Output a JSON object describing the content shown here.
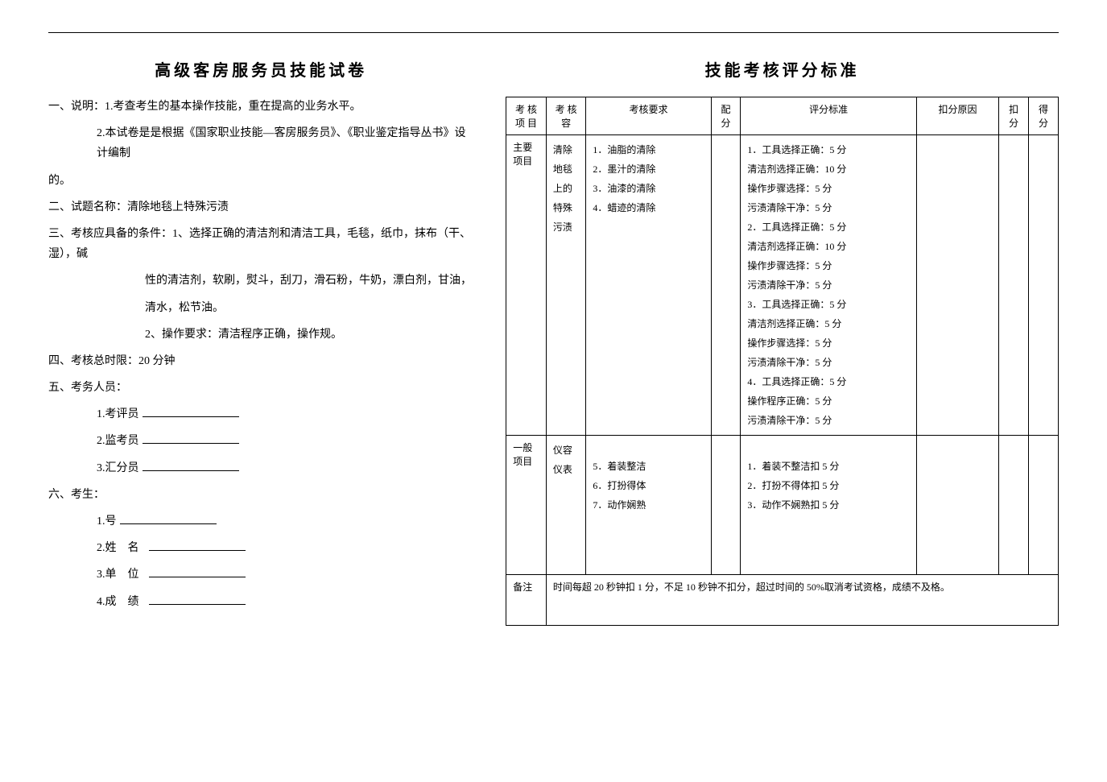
{
  "left": {
    "title": "高级客房服务员技能试卷",
    "section1_prefix": "一、说明：",
    "section1_item1_num": "1.",
    "section1_item1": "考查考生的基本操作技能，重在提高的业务水平。",
    "section1_item2_num": "2.",
    "section1_item2": "本试卷是是根据《国家职业技能—客房服务员》、《职业鉴定指导丛书》设计编制",
    "section1_item2_cont": "的。",
    "section2_prefix": "二、试题名称：",
    "section2_text": "清除地毯上特殊污渍",
    "section3_prefix": "三、考核应具备的条件：",
    "section3_item1_num": "1、",
    "section3_item1": "选择正确的清洁剂和清洁工具，毛毯，纸巾，抹布（干、湿），碱",
    "section3_item1_cont1": "性的清洁剂，软刷，熨斗，刮刀，滑石粉，牛奶，漂白剂，甘油，",
    "section3_item1_cont2": "清水，松节油。",
    "section3_item2_num": "2、",
    "section3_item2": "操作要求：清洁程序正确，操作规。",
    "section4_prefix": "四、考核总时限：",
    "section4_text": "20 分钟",
    "section5_prefix": "五、考务人员：",
    "section5_item1_num": "1.",
    "section5_item1": "考评员",
    "section5_item2_num": "2.",
    "section5_item2": "监考员",
    "section5_item3_num": "3.",
    "section5_item3": "汇分员",
    "section6_prefix": "六、考生：",
    "section6_item1_num": "1.",
    "section6_item1": "号",
    "section6_item2_num": "2.",
    "section6_item2_a": "姓",
    "section6_item2_b": "名",
    "section6_item3_num": "3.",
    "section6_item3_a": "单",
    "section6_item3_b": "位",
    "section6_item4_num": "4.",
    "section6_item4_a": "成",
    "section6_item4_b": "绩"
  },
  "right": {
    "title": "技能考核评分标准",
    "headers": {
      "col1": "考 核\n项 目",
      "col2": "考 核\n容",
      "col3": "考核要求",
      "col4": "配\n分",
      "col5": "评分标准",
      "col6": "扣分原因",
      "col7": "扣\n分",
      "col8": "得\n分"
    },
    "row1": {
      "project": "主要\n项目",
      "content_lines": [
        "清除",
        "地毯",
        "上的",
        "特殊",
        "污渍"
      ],
      "requirements": [
        "1．油脂的清除",
        "2．墨汁的清除",
        "3．油漆的清除",
        "4．蜡迹的清除"
      ],
      "standards": [
        "1．工具选择正确：5 分",
        "清洁剂选择正确：10 分",
        "操作步骤选择：5 分",
        "污渍清除干净：5 分",
        "2．工具选择正确：5 分",
        "清洁剂选择正确：10 分",
        "操作步骤选择：5 分",
        "污渍清除干净：5 分",
        "3．工具选择正确：5 分",
        "清洁剂选择正确：5 分",
        "操作步骤选择：5 分",
        "污渍清除干净：5 分",
        "4．工具选择正确：5 分",
        "操作程序正确：5 分",
        "污渍清除干净：5 分"
      ]
    },
    "row2": {
      "project": "一般\n项目",
      "content_lines": [
        "仪容",
        "仪表"
      ],
      "requirements": [
        "5．着装整洁",
        "6．打扮得体",
        "7．动作娴熟"
      ],
      "standards": [
        "1．着装不整洁扣 5 分",
        "2．打扮不得体扣 5 分",
        "3．动作不娴熟扣 5 分"
      ]
    },
    "note_label": "备注",
    "note_text": "时间每超 20 秒钟扣 1 分，不足 10 秒钟不扣分，超过时间的 50%取消考试资格，成绩不及格。"
  }
}
